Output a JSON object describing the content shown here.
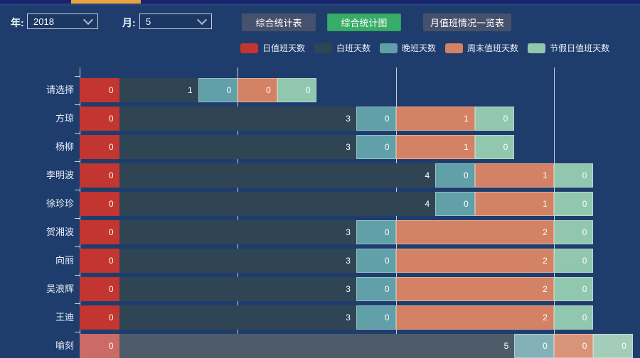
{
  "header": {
    "year_label": "年:",
    "year_value": "2018",
    "month_label": "月:",
    "month_value": "5",
    "buttons": [
      {
        "label": "综合统计表",
        "active": false
      },
      {
        "label": "综合统计图",
        "active": true
      },
      {
        "label": "月值班情况一览表",
        "active": false
      }
    ]
  },
  "colors": {
    "background": "#1e3d6d",
    "top_strip": "#17236b",
    "tab_indicator_orange": "#eaa43e",
    "slate_button": "#46516b",
    "active_green_button": "#37ad68",
    "grid_line": "#e6eaf1",
    "axis_line": "#ccd3de",
    "value_label": "#ffffff",
    "category_label": "#e8ecf4"
  },
  "chart_data": {
    "type": "bar",
    "orientation": "horizontal",
    "stacked": true,
    "title": "",
    "xlabel": "",
    "ylabel": "",
    "xlim": [
      0,
      7
    ],
    "gridline_values": [
      2,
      4,
      6
    ],
    "zero_value_bar_units": 0.5,
    "value_label_position": "inside-right",
    "legend_position": "top-center",
    "categories": [
      "请选择",
      "方琼",
      "杨柳",
      "李明波",
      "徐珍珍",
      "贺湘波",
      "向丽",
      "吴浪辉",
      "王迪",
      "喻刻"
    ],
    "highlighted_row": "喻刻",
    "series": [
      {
        "name": "日值班天数",
        "color": "#c23531",
        "highlight_color": "#cb6a66",
        "bordered": false,
        "values": [
          0,
          0,
          0,
          0,
          0,
          0,
          0,
          0,
          0,
          0
        ]
      },
      {
        "name": "白班天数",
        "color": "#2f4554",
        "highlight_color": "#4e5c6a",
        "bordered": false,
        "values": [
          1,
          3,
          3,
          4,
          4,
          3,
          3,
          3,
          3,
          5
        ]
      },
      {
        "name": "晚班天数",
        "color": "#61a0a8",
        "highlight_color": "#84b1b8",
        "bordered": true,
        "values": [
          0,
          0,
          0,
          0,
          0,
          0,
          0,
          0,
          0,
          0
        ]
      },
      {
        "name": "周末值班天数",
        "color": "#d48265",
        "highlight_color": "#d79478",
        "bordered": true,
        "values": [
          0,
          1,
          1,
          1,
          1,
          2,
          2,
          2,
          2,
          0
        ]
      },
      {
        "name": "节假日值班天数",
        "color": "#91c7ae",
        "highlight_color": "#a4cdb9",
        "bordered": true,
        "values": [
          0,
          0,
          0,
          0,
          0,
          0,
          0,
          0,
          0,
          0
        ]
      }
    ]
  }
}
